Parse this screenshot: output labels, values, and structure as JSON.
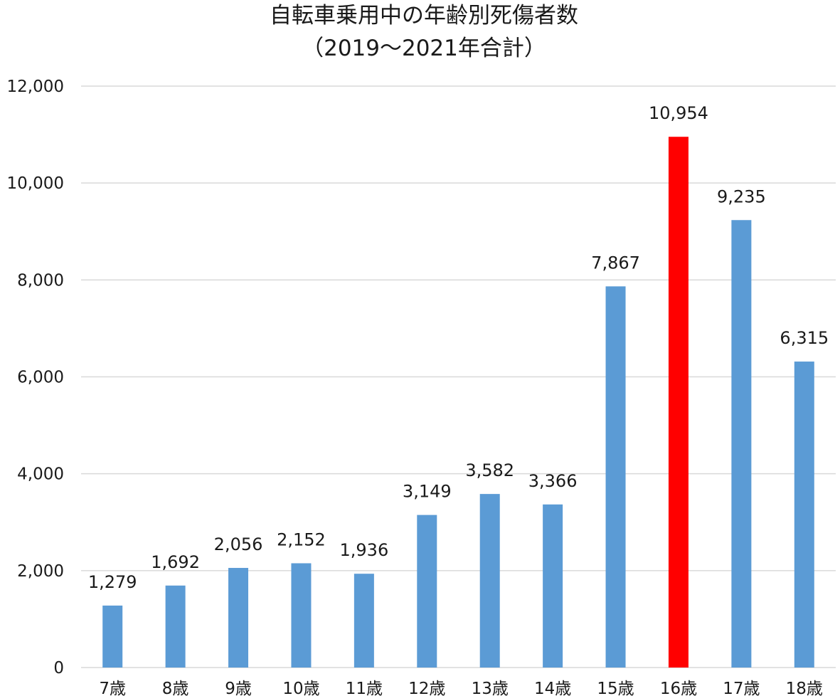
{
  "chart_data": {
    "type": "bar",
    "title": "自転車乗用中の年齢別死傷者数",
    "subtitle": "（2019～2021年合計）",
    "categories": [
      "7歳",
      "8歳",
      "9歳",
      "10歳",
      "11歳",
      "12歳",
      "13歳",
      "14歳",
      "15歳",
      "16歳",
      "17歳",
      "18歳"
    ],
    "values": [
      1279,
      1692,
      2056,
      2152,
      1936,
      3149,
      3582,
      3366,
      7867,
      10954,
      9235,
      6315
    ],
    "data_labels": [
      "1,279",
      "1,692",
      "2,056",
      "2,152",
      "1,936",
      "3,149",
      "3,582",
      "3,366",
      "7,867",
      "10,954",
      "9,235",
      "6,315"
    ],
    "y_ticks": [
      0,
      2000,
      4000,
      6000,
      8000,
      10000,
      12000
    ],
    "y_tick_labels": [
      "0",
      "2,000",
      "4,000",
      "6,000",
      "8,000",
      "10,000",
      "12,000"
    ],
    "ylim": [
      0,
      12000
    ],
    "xlabel": "",
    "ylabel": "",
    "grid": true,
    "legend": "none",
    "colors": {
      "bar": "#5b9bd5",
      "highlight": "#ff0000",
      "highlight_category": "16歳",
      "grid": "#d9d9d9",
      "text": "#1a1a1a"
    }
  }
}
